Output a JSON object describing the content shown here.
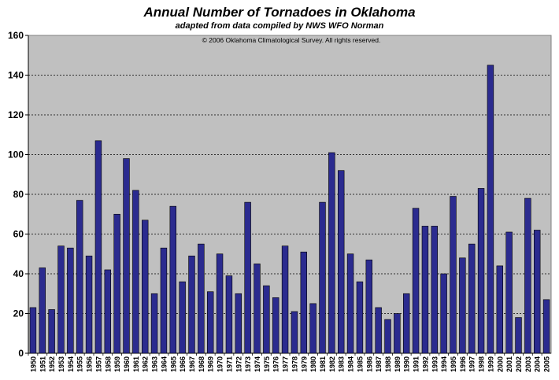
{
  "chart_data": {
    "type": "bar",
    "title": "Annual Number of Tornadoes in Oklahoma",
    "subtitle": "adapted from data compiled by NWS WFO Norman",
    "annotation": "© 2006 Oklahoma Climatological Survey.  All rights reserved.",
    "xlabel": "",
    "ylabel": "",
    "ylim": [
      0,
      160
    ],
    "yticks": [
      0,
      20,
      40,
      60,
      80,
      100,
      120,
      140,
      160
    ],
    "grid": "dashed horizontal",
    "legend": "none",
    "colors": {
      "bar": "#2b2b8f",
      "bar_edge": "#000000",
      "plot_bg": "#c0c0c0"
    },
    "categories": [
      "1950",
      "1951",
      "1952",
      "1953",
      "1954",
      "1955",
      "1956",
      "1957",
      "1958",
      "1959",
      "1960",
      "1961",
      "1962",
      "1963",
      "1964",
      "1965",
      "1966",
      "1967",
      "1968",
      "1969",
      "1970",
      "1971",
      "1972",
      "1973",
      "1974",
      "1975",
      "1976",
      "1977",
      "1978",
      "1979",
      "1980",
      "1981",
      "1982",
      "1983",
      "1984",
      "1985",
      "1986",
      "1987",
      "1988",
      "1989",
      "1990",
      "1991",
      "1992",
      "1993",
      "1994",
      "1995",
      "1996",
      "1997",
      "1998",
      "1999",
      "2000",
      "2001",
      "2002",
      "2003",
      "2004",
      "2005"
    ],
    "values": [
      23,
      43,
      22,
      54,
      53,
      77,
      49,
      107,
      42,
      70,
      98,
      82,
      67,
      30,
      53,
      74,
      36,
      49,
      55,
      31,
      50,
      39,
      30,
      76,
      45,
      34,
      28,
      54,
      21,
      51,
      25,
      76,
      101,
      92,
      50,
      36,
      47,
      23,
      17,
      20,
      30,
      73,
      64,
      64,
      40,
      79,
      48,
      55,
      83,
      145,
      44,
      61,
      18,
      78,
      62,
      27
    ]
  }
}
